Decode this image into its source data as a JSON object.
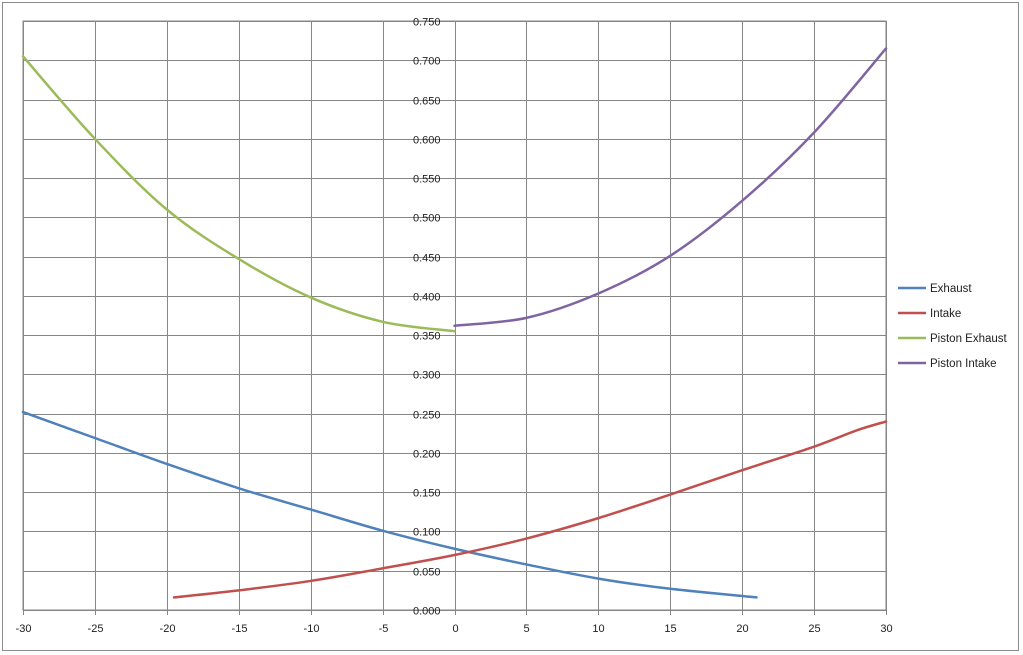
{
  "chart_data": {
    "type": "line",
    "title": "",
    "xlabel": "",
    "ylabel": "",
    "xlim": [
      -30,
      30
    ],
    "ylim": [
      0,
      0.75
    ],
    "x_ticks": [
      -30,
      -25,
      -20,
      -15,
      -10,
      -5,
      0,
      5,
      10,
      15,
      20,
      25,
      30
    ],
    "y_ticks": [
      0,
      0.05,
      0.1,
      0.15,
      0.2,
      0.25,
      0.3,
      0.35,
      0.4,
      0.45,
      0.5,
      0.55,
      0.6,
      0.65,
      0.7,
      0.75
    ],
    "x_tick_labels": [
      "-30",
      "-25",
      "-20",
      "-15",
      "-10",
      "-5",
      "0",
      "5",
      "10",
      "15",
      "20",
      "25",
      "30"
    ],
    "y_tick_labels": [
      "0.000",
      "0.050",
      "0.100",
      "0.150",
      "0.200",
      "0.250",
      "0.300",
      "0.350",
      "0.400",
      "0.450",
      "0.500",
      "0.550",
      "0.600",
      "0.650",
      "0.700",
      "0.750"
    ],
    "grid": true,
    "legend_position": "right",
    "series": [
      {
        "name": "Exhaust",
        "color": "#4f81bd",
        "x": [
          -30,
          -25,
          -20,
          -15,
          -10,
          -5,
          0,
          5,
          10,
          15,
          21
        ],
        "y": [
          0.252,
          0.219,
          0.186,
          0.155,
          0.128,
          0.101,
          0.078,
          0.058,
          0.04,
          0.027,
          0.016
        ]
      },
      {
        "name": "Intake",
        "color": "#c0504d",
        "x": [
          -19.5,
          -15,
          -10,
          -5,
          0,
          5,
          10,
          15,
          20,
          25,
          28,
          30
        ],
        "y": [
          0.016,
          0.025,
          0.037,
          0.053,
          0.07,
          0.091,
          0.117,
          0.147,
          0.178,
          0.208,
          0.229,
          0.24
        ]
      },
      {
        "name": "Piston Exhaust",
        "color": "#9bbb59",
        "x": [
          -30,
          -25,
          -20,
          -15,
          -10,
          -5,
          0
        ],
        "y": [
          0.705,
          0.6,
          0.51,
          0.447,
          0.398,
          0.367,
          0.355
        ]
      },
      {
        "name": "Piston Intake",
        "color": "#8064a2",
        "x": [
          0,
          5,
          10,
          15,
          20,
          25,
          30
        ],
        "y": [
          0.362,
          0.372,
          0.403,
          0.451,
          0.521,
          0.608,
          0.715
        ]
      }
    ]
  }
}
